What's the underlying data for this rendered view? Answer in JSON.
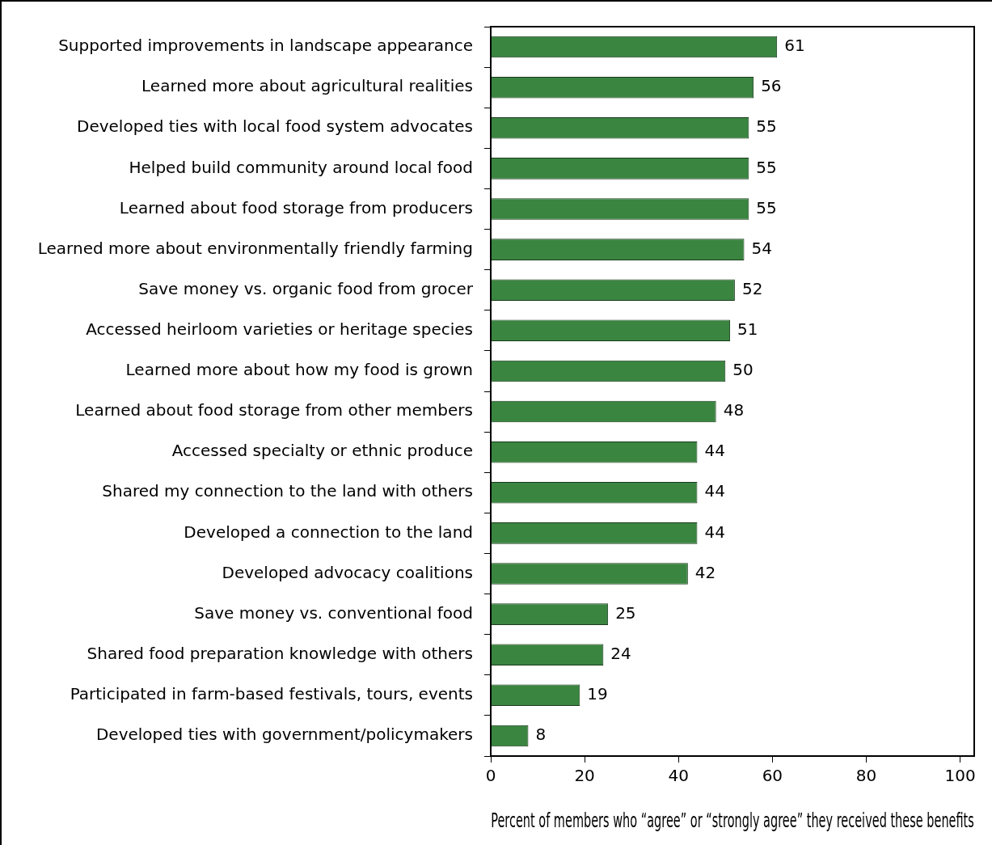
{
  "chart_data": {
    "type": "bar",
    "orientation": "horizontal",
    "xlabel": "Percent of members who “agree” or “strongly agree” they received these benefits",
    "categories": [
      "Supported improvements in landscape appearance",
      "Learned more about agricultural realities",
      "Developed ties with local food system advocates",
      "Helped build community around local food",
      "Learned about food storage from producers",
      "Learned more about environmentally friendly farming",
      "Save money vs. organic food from grocer",
      "Accessed heirloom varieties or heritage species",
      "Learned more about how my food is grown",
      "Learned about food storage from other members",
      "Accessed specialty or ethnic produce",
      "Shared my connection to the land with others",
      "Developed a connection to the land",
      "Developed advocacy coalitions",
      "Save money vs. conventional food",
      "Shared food preparation knowledge with others",
      "Participated in farm-based festivals, tours, events",
      "Developed ties with government/policymakers"
    ],
    "values": [
      61,
      56,
      55,
      55,
      55,
      54,
      52,
      51,
      50,
      48,
      44,
      44,
      44,
      42,
      25,
      24,
      19,
      8
    ],
    "color": "#3a8540",
    "data_labels": true,
    "xlim": [
      0,
      103
    ],
    "xticks": [
      0,
      20,
      40,
      60,
      80,
      100
    ],
    "grid": false,
    "legend": false
  }
}
